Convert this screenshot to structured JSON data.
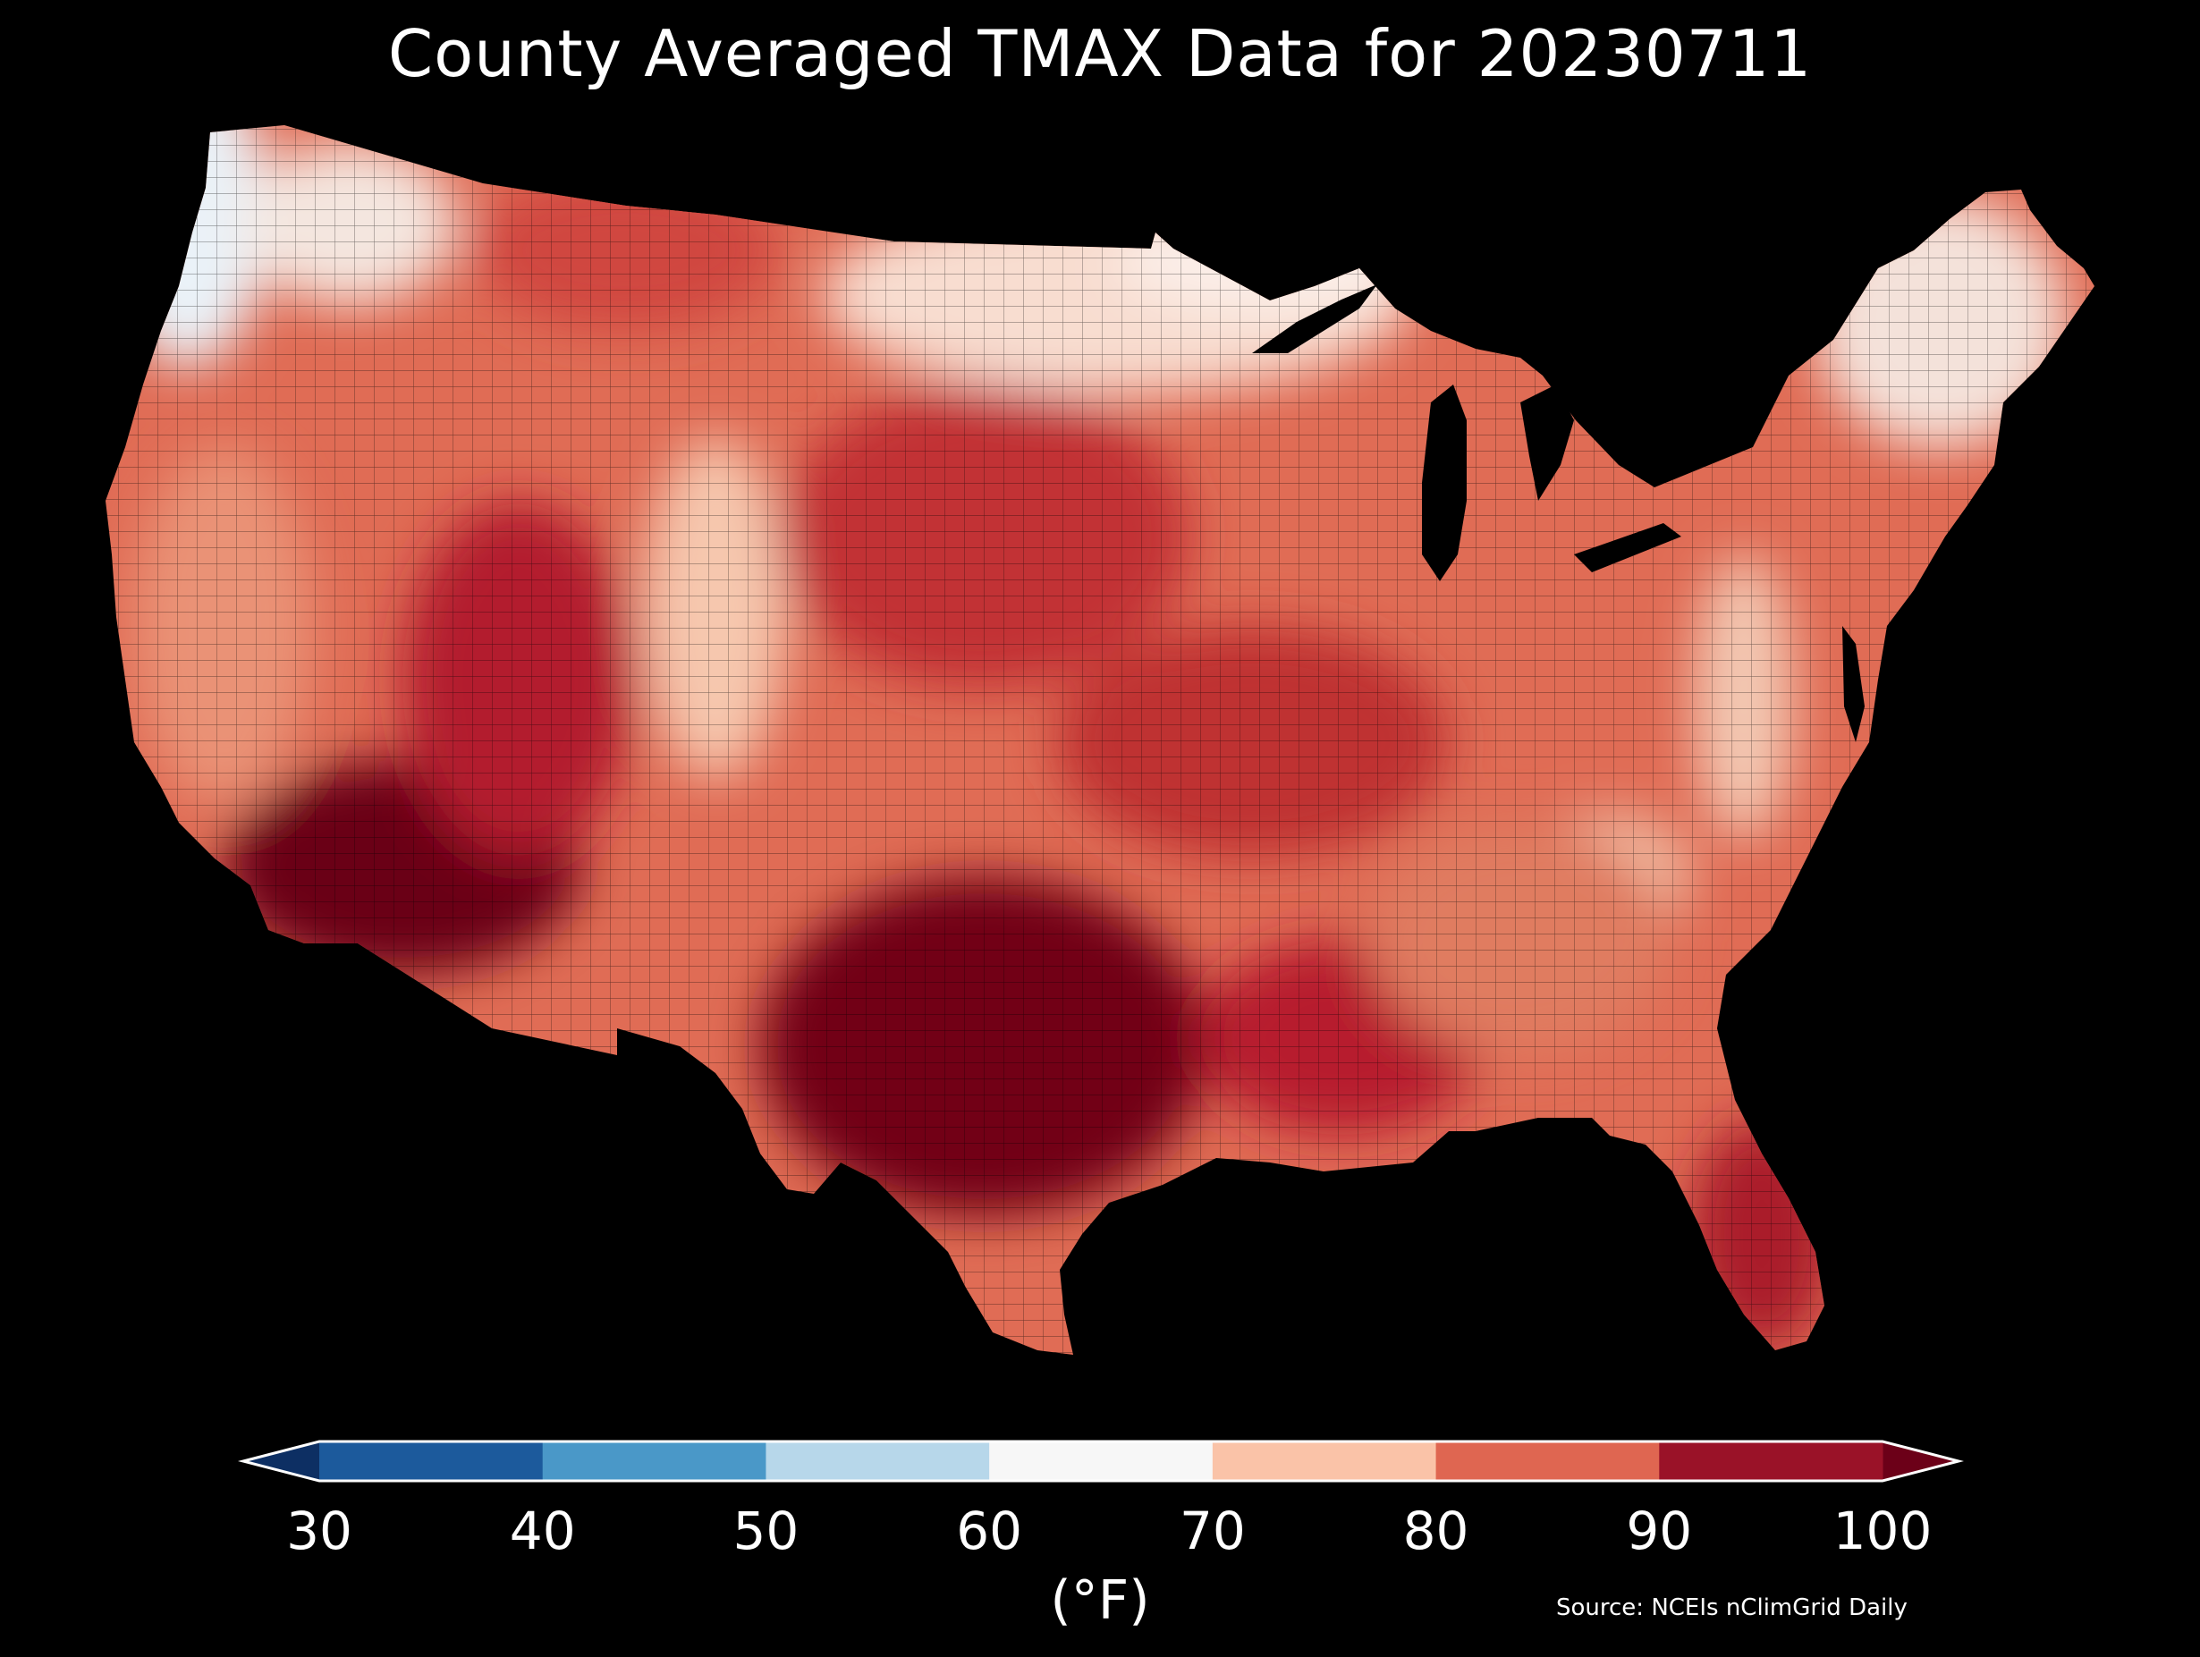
{
  "title": "County Averaged TMAX Data for 20230711",
  "map": {
    "variable": "TMAX",
    "date": "20230711",
    "region": "Contiguous United States, county level",
    "regions_approx": [
      {
        "name": "Pacific Northwest coast",
        "approx_F": 58
      },
      {
        "name": "Northern Rockies / Montana",
        "approx_F": 80
      },
      {
        "name": "Upper Midwest / Minnesota",
        "approx_F": 66
      },
      {
        "name": "Great Plains",
        "approx_F": 88
      },
      {
        "name": "Desert Southwest / Arizona",
        "approx_F": 104
      },
      {
        "name": "Texas",
        "approx_F": 100
      },
      {
        "name": "Southeast",
        "approx_F": 86
      },
      {
        "name": "Florida",
        "approx_F": 91
      },
      {
        "name": "Appalachians",
        "approx_F": 72
      },
      {
        "name": "New England",
        "approx_F": 66
      }
    ]
  },
  "colorbar": {
    "ticks": [
      "30",
      "40",
      "50",
      "60",
      "70",
      "80",
      "90",
      "100"
    ],
    "colors": [
      "#0d2f63",
      "#1c5a9c",
      "#4a98c8",
      "#b7d7ea",
      "#f7f7f7",
      "#fac3a8",
      "#df6651",
      "#9a1228",
      "#6c0018"
    ],
    "unit": "(°F)",
    "extend": "both"
  },
  "source": "Source: NCEIs nClimGrid Daily"
}
